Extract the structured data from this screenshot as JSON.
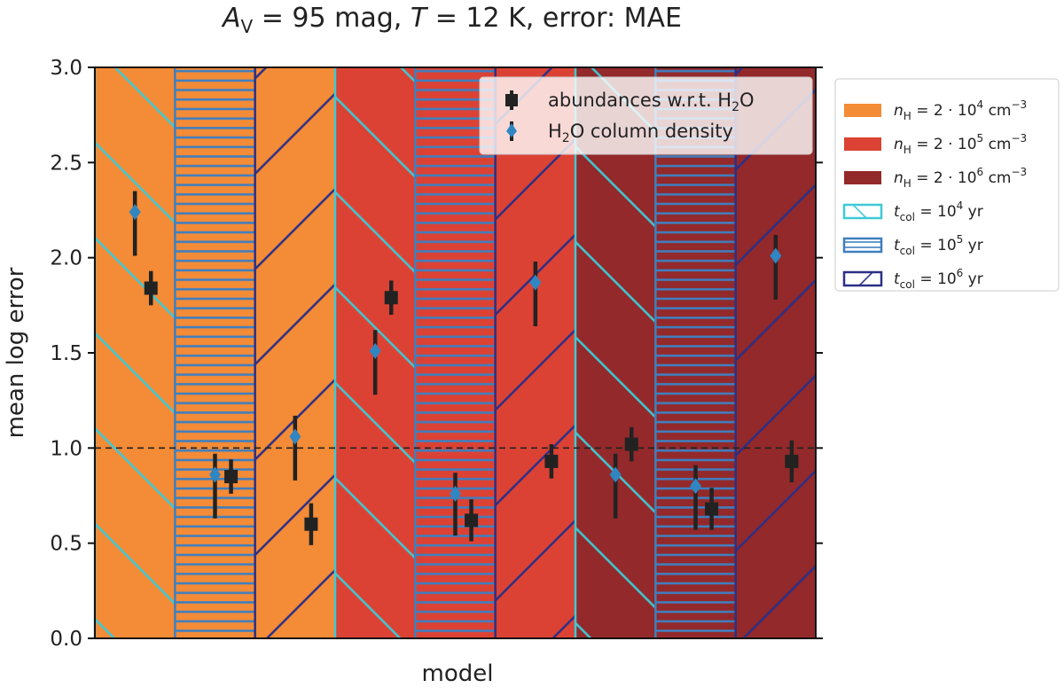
{
  "chart_data": {
    "type": "scatter",
    "title": {
      "av_sym": "A",
      "av_sub": "V",
      "av_val": " = 95 mag, ",
      "t_sym": "T",
      "t_val": " = 12 K, error: MAE"
    },
    "xlabel": "model",
    "ylabel": "mean log error",
    "ylim": [
      0,
      3.0
    ],
    "yticks": [
      "0.0",
      "0.5",
      "1.0",
      "1.5",
      "2.0",
      "2.5",
      "3.0"
    ],
    "reference_line": 1.0,
    "grid": false,
    "colors": {
      "density": [
        "#f48b36",
        "#dc4234",
        "#93292a"
      ],
      "hatch": [
        "#3ec9d6",
        "#3f7fbf",
        "#2b2f86"
      ],
      "square": "#222222",
      "diamond": "#2f86c2"
    },
    "groups": [
      {
        "density": 0,
        "time": 0,
        "water": {
          "value": 2.24,
          "err": [
            0.23,
            0.11
          ]
        },
        "abund": {
          "value": 1.84,
          "err": [
            0.09,
            0.09
          ]
        }
      },
      {
        "density": 0,
        "time": 1,
        "water": {
          "value": 0.86,
          "err": [
            0.23,
            0.11
          ]
        },
        "abund": {
          "value": 0.85,
          "err": [
            0.09,
            0.09
          ]
        }
      },
      {
        "density": 0,
        "time": 2,
        "water": {
          "value": 1.06,
          "err": [
            0.23,
            0.11
          ]
        },
        "abund": {
          "value": 0.6,
          "err": [
            0.11,
            0.11
          ]
        }
      },
      {
        "density": 1,
        "time": 0,
        "water": {
          "value": 1.51,
          "err": [
            0.23,
            0.11
          ]
        },
        "abund": {
          "value": 1.79,
          "err": [
            0.09,
            0.09
          ]
        }
      },
      {
        "density": 1,
        "time": 1,
        "water": {
          "value": 0.76,
          "err": [
            0.22,
            0.11
          ]
        },
        "abund": {
          "value": 0.62,
          "err": [
            0.11,
            0.11
          ]
        }
      },
      {
        "density": 1,
        "time": 2,
        "water": {
          "value": 1.87,
          "err": [
            0.23,
            0.11
          ]
        },
        "abund": {
          "value": 0.93,
          "err": [
            0.09,
            0.09
          ]
        }
      },
      {
        "density": 2,
        "time": 0,
        "water": {
          "value": 0.86,
          "err": [
            0.23,
            0.11
          ]
        },
        "abund": {
          "value": 1.02,
          "err": [
            0.09,
            0.09
          ]
        }
      },
      {
        "density": 2,
        "time": 1,
        "water": {
          "value": 0.8,
          "err": [
            0.23,
            0.11
          ]
        },
        "abund": {
          "value": 0.68,
          "err": [
            0.11,
            0.11
          ]
        }
      },
      {
        "density": 2,
        "time": 2,
        "water": {
          "value": 2.01,
          "err": [
            0.23,
            0.11
          ]
        },
        "abund": {
          "value": 0.93,
          "err": [
            0.11,
            0.11
          ]
        }
      }
    ],
    "legend_inner": [
      {
        "marker": "square",
        "label_pre": "abundances w.r.t. H",
        "label_sub": "2",
        "label_post": "O"
      },
      {
        "marker": "diamond",
        "label_pre": "H",
        "label_sub": "2",
        "label_post": "O column density"
      }
    ],
    "legend_outer": [
      {
        "kind": "density",
        "index": 0,
        "sym": "n",
        "sub": "H",
        "mid": " = 2 · 10",
        "sup": "4",
        "unit": " cm",
        "unit_sup": "−3"
      },
      {
        "kind": "density",
        "index": 1,
        "sym": "n",
        "sub": "H",
        "mid": " = 2 · 10",
        "sup": "5",
        "unit": " cm",
        "unit_sup": "−3"
      },
      {
        "kind": "density",
        "index": 2,
        "sym": "n",
        "sub": "H",
        "mid": " = 2 · 10",
        "sup": "6",
        "unit": " cm",
        "unit_sup": "−3"
      },
      {
        "kind": "time",
        "index": 0,
        "sym": "t",
        "sub": "col",
        "mid": " = 10",
        "sup": "4",
        "unit": " yr",
        "unit_sup": ""
      },
      {
        "kind": "time",
        "index": 1,
        "sym": "t",
        "sub": "col",
        "mid": " = 10",
        "sup": "5",
        "unit": " yr",
        "unit_sup": ""
      },
      {
        "kind": "time",
        "index": 2,
        "sym": "t",
        "sub": "col",
        "mid": " = 10",
        "sup": "6",
        "unit": " yr",
        "unit_sup": ""
      }
    ]
  }
}
